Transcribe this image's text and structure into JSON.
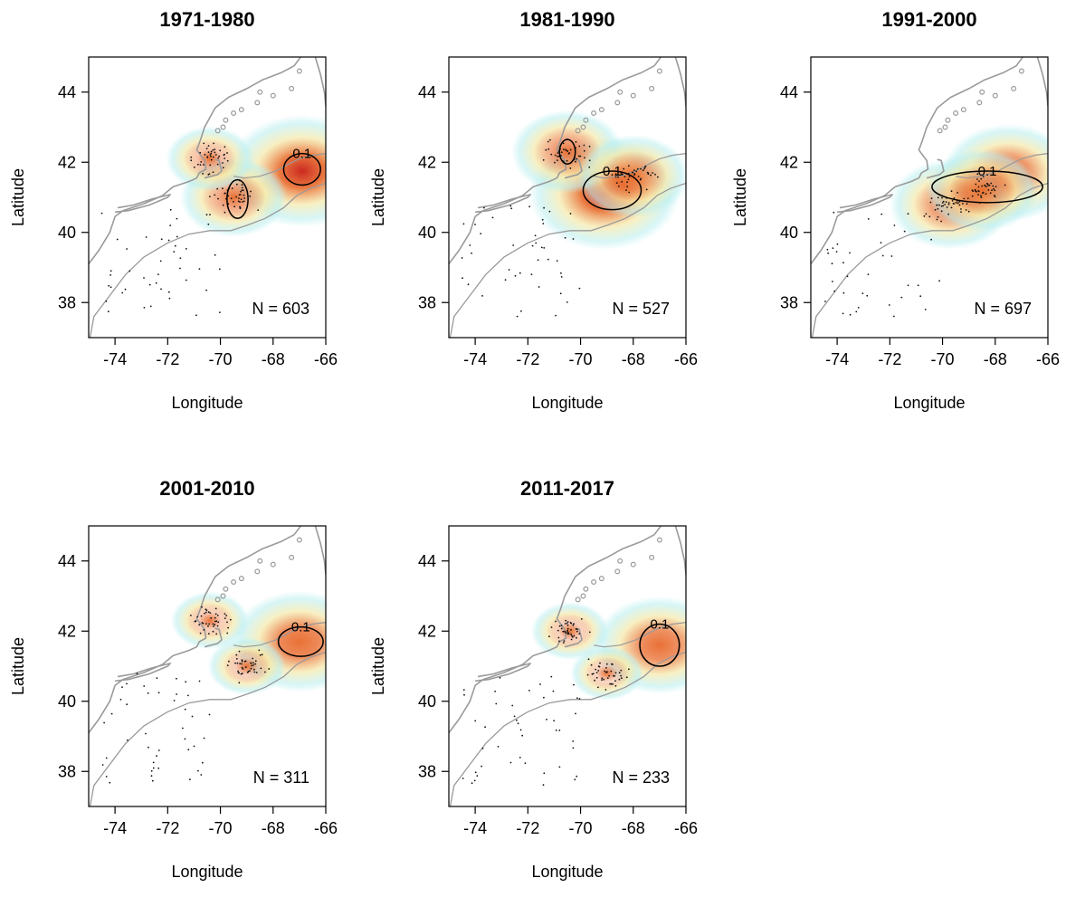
{
  "figure": {
    "x_axis_label": "Longitude",
    "y_axis_label": "Latitude",
    "x_ticks": [
      -74,
      -72,
      -70,
      -68,
      -66
    ],
    "y_ticks": [
      38,
      40,
      42,
      44
    ],
    "xlim": [
      -75,
      -66
    ],
    "ylim": [
      37,
      45
    ],
    "palette": {
      "low": "#bdeff0",
      "mid": "#f5e9a8",
      "high": "#e86a2c",
      "peak": "#c81e14",
      "coast": "#9a9a9a"
    }
  },
  "panels": [
    {
      "title": "1971-1980",
      "n_label": "N = 603",
      "contour_label": "0.1",
      "hotspots": [
        {
          "lon": -66.9,
          "lat": 41.75,
          "level": 1.0
        },
        {
          "lon": -69.5,
          "lat": 41.0,
          "level": 0.55
        },
        {
          "lon": -70.4,
          "lat": 42.1,
          "level": 0.35
        }
      ],
      "contours": [
        {
          "lon": -66.9,
          "lat": 41.8,
          "rx": 0.7,
          "ry": 0.45
        },
        {
          "lon": -69.35,
          "lat": 40.95,
          "rx": 0.4,
          "ry": 0.55
        }
      ]
    },
    {
      "title": "1981-1990",
      "n_label": "N = 527",
      "contour_label": "0.1",
      "hotspots": [
        {
          "lon": -69.1,
          "lat": 41.1,
          "level": 1.0
        },
        {
          "lon": -70.5,
          "lat": 42.3,
          "level": 0.6
        },
        {
          "lon": -68.0,
          "lat": 41.6,
          "level": 0.6
        }
      ],
      "contours": [
        {
          "lon": -68.8,
          "lat": 41.2,
          "rx": 1.1,
          "ry": 0.55
        },
        {
          "lon": -70.5,
          "lat": 42.3,
          "rx": 0.3,
          "ry": 0.35
        }
      ]
    },
    {
      "title": "1991-2000",
      "n_label": "N = 697",
      "contour_label": "0.1",
      "hotspots": [
        {
          "lon": -67.5,
          "lat": 41.7,
          "level": 0.8
        },
        {
          "lon": -69.7,
          "lat": 40.8,
          "level": 0.7
        },
        {
          "lon": -68.5,
          "lat": 41.2,
          "level": 0.6
        }
      ],
      "contours": [
        {
          "lon": -68.3,
          "lat": 41.3,
          "rx": 2.1,
          "ry": 0.45
        }
      ]
    },
    {
      "title": "2001-2010",
      "n_label": "N = 311",
      "contour_label": "0.1",
      "hotspots": [
        {
          "lon": -67.0,
          "lat": 41.7,
          "level": 0.85
        },
        {
          "lon": -69.0,
          "lat": 41.0,
          "level": 0.25
        },
        {
          "lon": -70.4,
          "lat": 42.3,
          "level": 0.25
        }
      ],
      "contours": [
        {
          "lon": -66.95,
          "lat": 41.7,
          "rx": 0.85,
          "ry": 0.42
        }
      ]
    },
    {
      "title": "2011-2017",
      "n_label": "N = 233",
      "contour_label": "0.1",
      "hotspots": [
        {
          "lon": -67.0,
          "lat": 41.6,
          "level": 0.8
        },
        {
          "lon": -69.0,
          "lat": 40.8,
          "level": 0.2
        },
        {
          "lon": -70.4,
          "lat": 42.0,
          "level": 0.25
        }
      ],
      "contours": [
        {
          "lon": -67.0,
          "lat": 41.6,
          "rx": 0.75,
          "ry": 0.6
        }
      ]
    }
  ]
}
